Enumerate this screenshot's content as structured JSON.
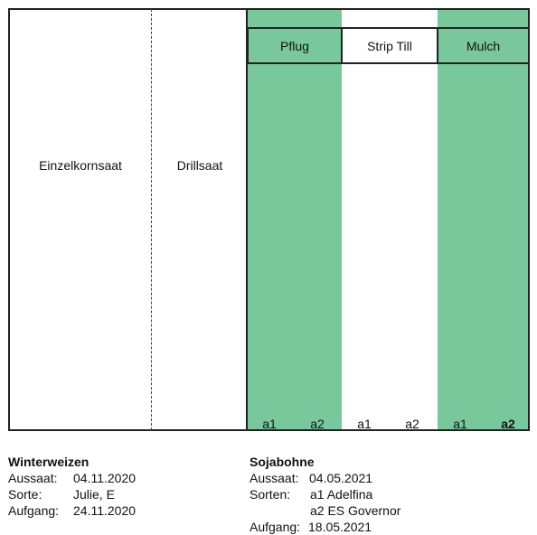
{
  "fields": {
    "left_label": "Einzelkornsaat",
    "middle_label": "Drillsaat",
    "treatments": [
      "Pflug",
      "Strip Till",
      "Mulch"
    ],
    "sub_labels": [
      "a1",
      "a2",
      "a1",
      "a2",
      "a1",
      "a2"
    ]
  },
  "colors": {
    "green": "#78c89b",
    "border": "#222222"
  },
  "winterweizen": {
    "title": "Winterweizen",
    "rows": [
      {
        "label": "Aussaat:",
        "value": "04.11.2020"
      },
      {
        "label": "Sorte:",
        "value": "Julie, E"
      },
      {
        "label": "Aufgang:",
        "value": "24.11.2020"
      }
    ]
  },
  "sojabohne": {
    "title": "Sojabohne",
    "aussaat_label": "Aussaat:",
    "aussaat_value": "04.05.2021",
    "sorten_label": "Sorten:",
    "sorte_1": "a1 Adelfina",
    "sorte_2": "a2 ES Governor",
    "aufgang_label": "Aufgang:",
    "aufgang_value": "18.05.2021"
  }
}
